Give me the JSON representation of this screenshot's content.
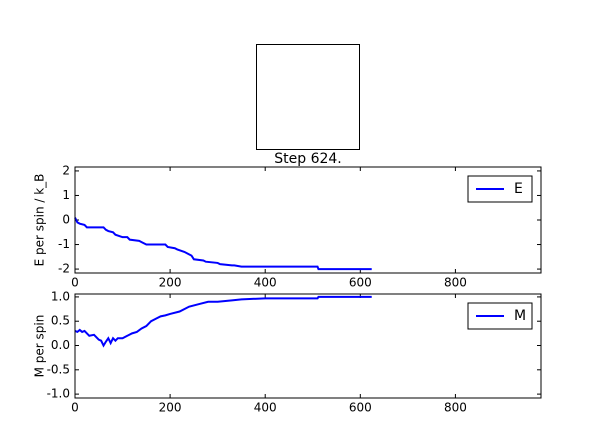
{
  "chart_data": [
    {
      "type": "line",
      "title": "Step 624.",
      "ylabel": "E per spin / k_B",
      "x": [
        0,
        5,
        10,
        20,
        25,
        60,
        65,
        70,
        80,
        85,
        100,
        110,
        115,
        135,
        140,
        150,
        190,
        195,
        210,
        215,
        230,
        235,
        245,
        250,
        270,
        275,
        300,
        305,
        330,
        335,
        350,
        510,
        512,
        624
      ],
      "series": [
        {
          "name": "E",
          "color": "#0000ff",
          "values": [
            0.1,
            -0.1,
            -0.15,
            -0.2,
            -0.3,
            -0.3,
            -0.4,
            -0.45,
            -0.5,
            -0.6,
            -0.7,
            -0.7,
            -0.8,
            -0.85,
            -0.9,
            -1.0,
            -1.0,
            -1.1,
            -1.15,
            -1.2,
            -1.3,
            -1.35,
            -1.45,
            -1.6,
            -1.65,
            -1.7,
            -1.75,
            -1.8,
            -1.85,
            -1.85,
            -1.9,
            -1.9,
            -2.0,
            -2.0
          ]
        }
      ],
      "xlim": [
        0,
        980
      ],
      "xticks": [
        0,
        200,
        400,
        600,
        800
      ],
      "ylim": [
        -2.16,
        2.16
      ],
      "yticks": [
        -2,
        -1,
        0,
        1,
        2
      ],
      "legend": "upper right"
    },
    {
      "type": "line",
      "ylabel": "M per spin",
      "x": [
        0,
        5,
        10,
        15,
        20,
        30,
        40,
        50,
        55,
        60,
        65,
        70,
        75,
        80,
        85,
        90,
        100,
        110,
        120,
        130,
        140,
        150,
        160,
        170,
        180,
        190,
        200,
        220,
        240,
        260,
        280,
        300,
        330,
        350,
        400,
        510,
        512,
        624
      ],
      "series": [
        {
          "name": "M",
          "color": "#0000ff",
          "values": [
            0.3,
            0.28,
            0.32,
            0.28,
            0.3,
            0.2,
            0.22,
            0.12,
            0.1,
            0.0,
            0.08,
            0.15,
            0.05,
            0.15,
            0.1,
            0.15,
            0.15,
            0.2,
            0.25,
            0.28,
            0.35,
            0.4,
            0.5,
            0.55,
            0.6,
            0.62,
            0.65,
            0.7,
            0.8,
            0.85,
            0.9,
            0.9,
            0.93,
            0.95,
            0.97,
            0.97,
            1.0,
            1.0
          ]
        }
      ],
      "xlim": [
        0,
        980
      ],
      "xticks": [
        0,
        200,
        400,
        600,
        800
      ],
      "ylim": [
        -1.08,
        1.06
      ],
      "yticks": [
        {
          "value": -1,
          "label": "-1.0"
        },
        {
          "value": -0.5,
          "label": "-0.5"
        },
        {
          "value": 0,
          "label": "0.0"
        },
        {
          "value": 0.5,
          "label": "0.5"
        },
        {
          "value": 1,
          "label": "1.0"
        }
      ],
      "legend": "upper right"
    }
  ]
}
